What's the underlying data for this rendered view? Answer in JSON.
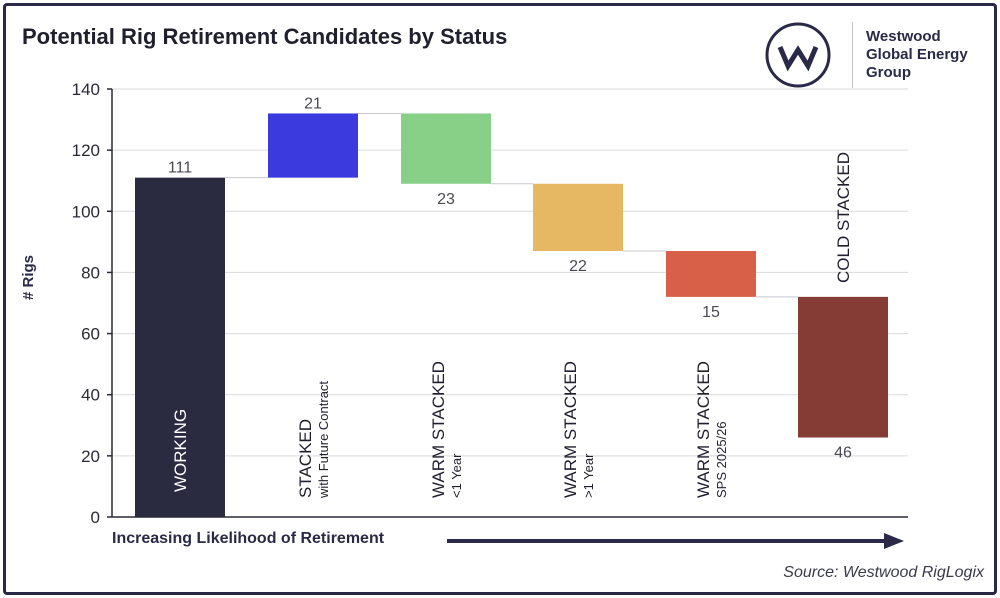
{
  "title": "Potential Rig Retirement Candidates by Status",
  "logo": {
    "mark_letter": "W",
    "line1": "Westwood",
    "line2": "Global Energy",
    "line3": "Group"
  },
  "source": "Source: Westwood RigLogix",
  "colors": {
    "working": "#2a2a40",
    "stacked_future": "#3a3ade",
    "warm_lt1": "#88cf88",
    "warm_gt1": "#e6b864",
    "warm_sps": "#d86048",
    "cold": "#843c34",
    "arrow": "#2a2a48"
  },
  "chart_data": {
    "type": "bar",
    "subtype": "waterfall",
    "title": "Potential Rig Retirement Candidates by Status",
    "xlabel": "Increasing Likelihood of Retirement",
    "ylabel": "# Rigs",
    "ylim": [
      0,
      140
    ],
    "yticks": [
      0,
      20,
      40,
      60,
      80,
      100,
      120,
      140
    ],
    "grid": true,
    "bars": [
      {
        "label_main": "WORKING",
        "label_sub": "",
        "value": 111,
        "base": 0,
        "top": 111,
        "value_label": "111",
        "label_pos": "above",
        "color_key": "working"
      },
      {
        "label_main": "STACKED",
        "label_sub": "with Future Contract",
        "value": 21,
        "base": 111,
        "top": 132,
        "value_label": "21",
        "label_pos": "above",
        "color_key": "stacked_future"
      },
      {
        "label_main": "WARM STACKED",
        "label_sub": "<1 Year",
        "value": 23,
        "base": 109,
        "top": 132,
        "value_label": "23",
        "label_pos": "below",
        "color_key": "warm_lt1"
      },
      {
        "label_main": "WARM STACKED",
        "label_sub": ">1 Year",
        "value": 22,
        "base": 87,
        "top": 109,
        "value_label": "22",
        "label_pos": "below",
        "color_key": "warm_gt1"
      },
      {
        "label_main": "WARM STACKED",
        "label_sub": "SPS 2025/26",
        "value": 15,
        "base": 72,
        "top": 87,
        "value_label": "15",
        "label_pos": "below",
        "color_key": "warm_sps"
      },
      {
        "label_main": "COLD STACKED",
        "label_sub": "",
        "value": 46,
        "base": 26,
        "top": 72,
        "value_label": "46",
        "label_pos": "below",
        "color_key": "cold"
      }
    ]
  }
}
